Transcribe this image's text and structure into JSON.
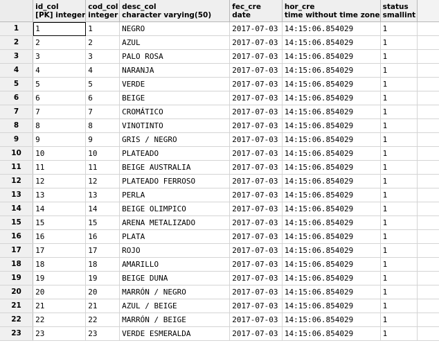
{
  "columns": [
    {
      "name": "id_col",
      "type": "[PK] integer"
    },
    {
      "name": "cod_col",
      "type": "integer"
    },
    {
      "name": "desc_col",
      "type": "character varying(50)"
    },
    {
      "name": "fec_cre",
      "type": "date"
    },
    {
      "name": "hor_cre",
      "type": "time without time zone"
    },
    {
      "name": "status",
      "type": "smallint"
    }
  ],
  "rows": [
    {
      "n": "1",
      "cells": [
        "1",
        "1",
        "NEGRO",
        "2017-07-03",
        "14:15:06.854029",
        "1"
      ]
    },
    {
      "n": "2",
      "cells": [
        "2",
        "2",
        "AZUL",
        "2017-07-03",
        "14:15:06.854029",
        "1"
      ]
    },
    {
      "n": "3",
      "cells": [
        "3",
        "3",
        "PALO ROSA",
        "2017-07-03",
        "14:15:06.854029",
        "1"
      ]
    },
    {
      "n": "4",
      "cells": [
        "4",
        "4",
        "NARANJA",
        "2017-07-03",
        "14:15:06.854029",
        "1"
      ]
    },
    {
      "n": "5",
      "cells": [
        "5",
        "5",
        "VERDE",
        "2017-07-03",
        "14:15:06.854029",
        "1"
      ]
    },
    {
      "n": "6",
      "cells": [
        "6",
        "6",
        "BEIGE",
        "2017-07-03",
        "14:15:06.854029",
        "1"
      ]
    },
    {
      "n": "7",
      "cells": [
        "7",
        "7",
        "CROMÁTICO",
        "2017-07-03",
        "14:15:06.854029",
        "1"
      ]
    },
    {
      "n": "8",
      "cells": [
        "8",
        "8",
        "VINOTINTO",
        "2017-07-03",
        "14:15:06.854029",
        "1"
      ]
    },
    {
      "n": "9",
      "cells": [
        "9",
        "9",
        "GRIS / NEGRO",
        "2017-07-03",
        "14:15:06.854029",
        "1"
      ]
    },
    {
      "n": "10",
      "cells": [
        "10",
        "10",
        "PLATEADO",
        "2017-07-03",
        "14:15:06.854029",
        "1"
      ]
    },
    {
      "n": "11",
      "cells": [
        "11",
        "11",
        "BEIGE AUSTRALIA",
        "2017-07-03",
        "14:15:06.854029",
        "1"
      ]
    },
    {
      "n": "12",
      "cells": [
        "12",
        "12",
        "PLATEADO FERROSO",
        "2017-07-03",
        "14:15:06.854029",
        "1"
      ]
    },
    {
      "n": "13",
      "cells": [
        "13",
        "13",
        "PERLA",
        "2017-07-03",
        "14:15:06.854029",
        "1"
      ]
    },
    {
      "n": "14",
      "cells": [
        "14",
        "14",
        "BEIGE OLIMPICO",
        "2017-07-03",
        "14:15:06.854029",
        "1"
      ]
    },
    {
      "n": "15",
      "cells": [
        "15",
        "15",
        "ARENA METALIZADO",
        "2017-07-03",
        "14:15:06.854029",
        "1"
      ]
    },
    {
      "n": "16",
      "cells": [
        "16",
        "16",
        "PLATA",
        "2017-07-03",
        "14:15:06.854029",
        "1"
      ]
    },
    {
      "n": "17",
      "cells": [
        "17",
        "17",
        "ROJO",
        "2017-07-03",
        "14:15:06.854029",
        "1"
      ]
    },
    {
      "n": "18",
      "cells": [
        "18",
        "18",
        "AMARILLO",
        "2017-07-03",
        "14:15:06.854029",
        "1"
      ]
    },
    {
      "n": "19",
      "cells": [
        "19",
        "19",
        "BEIGE DUNA",
        "2017-07-03",
        "14:15:06.854029",
        "1"
      ]
    },
    {
      "n": "20",
      "cells": [
        "20",
        "20",
        "MARRÓN / NEGRO",
        "2017-07-03",
        "14:15:06.854029",
        "1"
      ]
    },
    {
      "n": "21",
      "cells": [
        "21",
        "21",
        "AZUL / BEIGE",
        "2017-07-03",
        "14:15:06.854029",
        "1"
      ]
    },
    {
      "n": "22",
      "cells": [
        "22",
        "22",
        "MARRÓN / BEIGE",
        "2017-07-03",
        "14:15:06.854029",
        "1"
      ]
    },
    {
      "n": "23",
      "cells": [
        "23",
        "23",
        "VERDE ESMERALDA",
        "2017-07-03",
        "14:15:06.854029",
        "1"
      ]
    }
  ]
}
